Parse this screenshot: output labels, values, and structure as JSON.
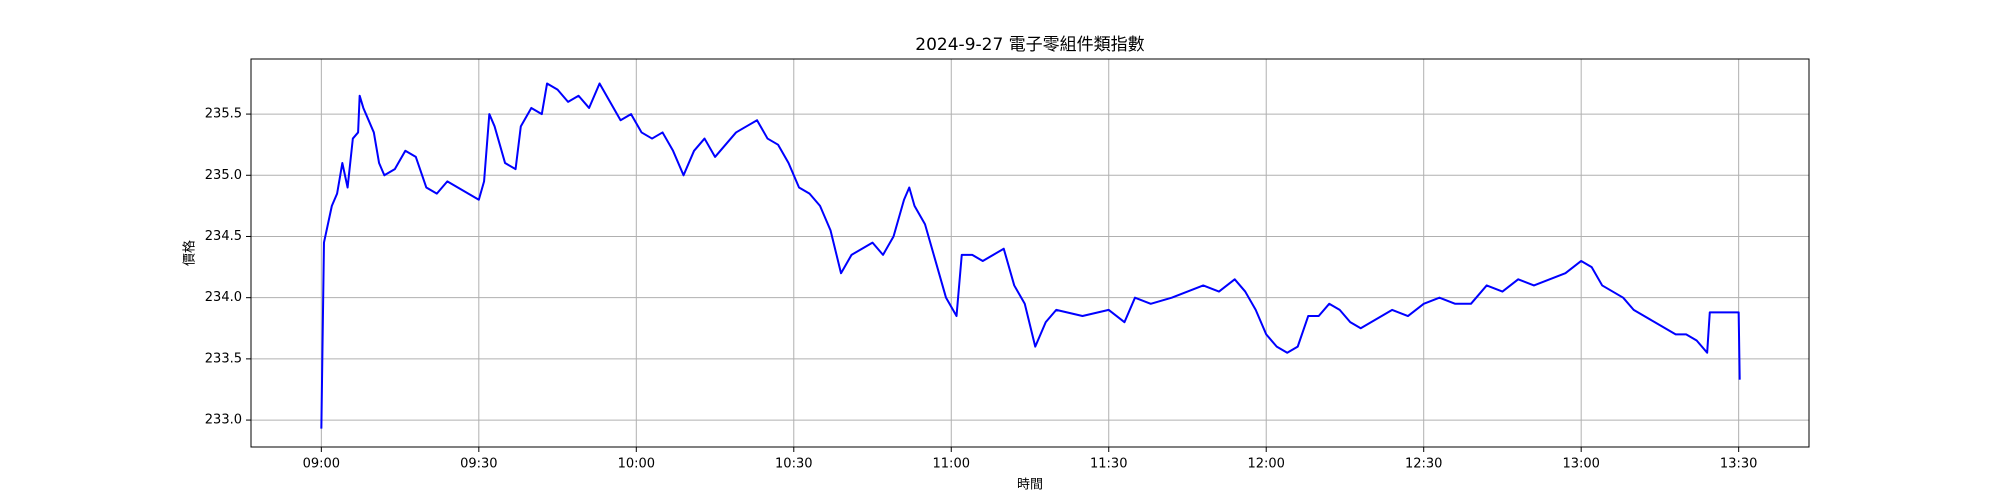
{
  "chart_data": {
    "type": "line",
    "title": "2024-9-27 電子零組件類指數",
    "xlabel": "時間",
    "ylabel": "價格",
    "x": [
      540,
      540.5,
      541,
      542,
      543,
      544,
      545,
      546,
      547,
      547.3,
      548,
      549,
      550,
      551,
      552,
      554,
      556,
      558,
      560,
      562,
      564,
      566,
      568,
      570,
      571,
      572,
      573,
      575,
      577,
      578,
      580,
      582,
      583,
      585,
      587,
      589,
      591,
      593,
      595,
      597,
      599,
      601,
      603,
      605,
      607,
      609,
      611,
      613,
      615,
      617,
      619,
      621,
      623,
      625,
      627,
      629,
      631,
      633,
      635,
      637,
      639,
      641,
      643,
      645,
      647,
      649,
      651,
      652,
      653,
      655,
      657,
      659,
      661,
      662,
      664,
      666,
      668,
      670,
      672,
      674,
      676,
      678,
      680,
      685,
      690,
      693,
      695,
      698,
      702,
      705,
      708,
      711,
      714,
      716,
      718,
      720,
      722,
      724,
      726,
      728,
      730,
      732,
      734,
      736,
      738,
      740,
      744,
      747,
      750,
      753,
      756,
      759,
      762,
      765,
      768,
      771,
      774,
      777,
      780,
      782,
      784,
      786,
      788,
      790,
      792,
      794,
      796,
      798,
      800,
      802,
      804,
      804.5,
      810,
      810.2
    ],
    "series": [
      {
        "color": "#0000ff",
        "values": [
          232.93,
          234.45,
          234.55,
          234.75,
          234.85,
          235.1,
          234.9,
          235.3,
          235.35,
          235.65,
          235.55,
          235.45,
          235.35,
          235.1,
          235.0,
          235.05,
          235.2,
          235.15,
          234.9,
          234.85,
          234.95,
          234.9,
          234.85,
          234.8,
          234.95,
          235.5,
          235.4,
          235.1,
          235.05,
          235.4,
          235.55,
          235.5,
          235.75,
          235.7,
          235.6,
          235.65,
          235.55,
          235.75,
          235.6,
          235.45,
          235.5,
          235.35,
          235.3,
          235.35,
          235.2,
          235.0,
          235.2,
          235.3,
          235.15,
          235.25,
          235.35,
          235.4,
          235.45,
          235.3,
          235.25,
          235.1,
          234.9,
          234.85,
          234.75,
          234.55,
          234.2,
          234.35,
          234.4,
          234.45,
          234.35,
          234.5,
          234.8,
          234.9,
          234.75,
          234.6,
          234.3,
          234.0,
          233.85,
          234.35,
          234.35,
          234.3,
          234.35,
          234.4,
          234.1,
          233.95,
          233.6,
          233.8,
          233.9,
          233.85,
          233.9,
          233.8,
          234.0,
          233.95,
          234.0,
          234.05,
          234.1,
          234.05,
          234.15,
          234.05,
          233.9,
          233.7,
          233.6,
          233.55,
          233.6,
          233.85,
          233.85,
          233.95,
          233.9,
          233.8,
          233.75,
          233.8,
          233.9,
          233.85,
          233.95,
          234.0,
          233.95,
          233.95,
          234.1,
          234.05,
          234.15,
          234.1,
          234.15,
          234.2,
          234.3,
          234.25,
          234.1,
          234.05,
          234.0,
          233.9,
          233.85,
          233.8,
          233.75,
          233.7,
          233.7,
          233.65,
          233.55,
          233.88,
          233.88,
          233.33
        ]
      }
    ],
    "xlim": [
      526.6,
      823.4
    ],
    "xticks": [
      {
        "value": 540,
        "label": "09:00"
      },
      {
        "value": 570,
        "label": "09:30"
      },
      {
        "value": 600,
        "label": "10:00"
      },
      {
        "value": 630,
        "label": "10:30"
      },
      {
        "value": 660,
        "label": "11:00"
      },
      {
        "value": 690,
        "label": "11:30"
      },
      {
        "value": 720,
        "label": "12:00"
      },
      {
        "value": 750,
        "label": "12:30"
      },
      {
        "value": 780,
        "label": "13:00"
      },
      {
        "value": 810,
        "label": "13:30"
      }
    ],
    "ylim": [
      232.78,
      235.95
    ],
    "yticks": [
      {
        "value": 233,
        "label": "233.0"
      },
      {
        "value": 233.5,
        "label": "233.5"
      },
      {
        "value": 234,
        "label": "234.0"
      },
      {
        "value": 234.5,
        "label": "234.5"
      },
      {
        "value": 235,
        "label": "235.0"
      },
      {
        "value": 235.5,
        "label": "235.5"
      }
    ],
    "grid": true
  }
}
